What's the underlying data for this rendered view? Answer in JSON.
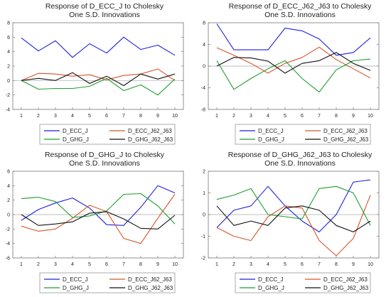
{
  "chart_data": [
    {
      "type": "line",
      "title": "Response of D_ECC_J to Cholesky",
      "subtitle": "One S.D. Innovations",
      "x": [
        1,
        2,
        3,
        4,
        5,
        6,
        7,
        8,
        9,
        10
      ],
      "ylim": [
        -4,
        8
      ],
      "yticks": [
        -4,
        -2,
        0,
        2,
        4,
        6,
        8
      ],
      "zero_line": true,
      "legend_placement": "bottom",
      "series": [
        {
          "name": "D_ECC_J",
          "color": "#1f1fe0",
          "values": [
            5.9,
            4.1,
            5.5,
            3.2,
            5.1,
            3.8,
            6.0,
            4.3,
            4.9,
            3.5
          ]
        },
        {
          "name": "D_ECC_J62_J63",
          "color": "#d9532b",
          "values": [
            0.0,
            1.0,
            0.9,
            0.6,
            0.8,
            0.1,
            0.7,
            0.9,
            1.6,
            0.0
          ]
        },
        {
          "name": "D_GHG_J",
          "color": "#1e9e2c",
          "values": [
            0.0,
            -1.2,
            -1.1,
            -1.1,
            -0.8,
            0.3,
            -1.4,
            -0.6,
            -2.0,
            0.2
          ]
        },
        {
          "name": "D_GHG_J62_J63",
          "color": "#111111",
          "values": [
            0.0,
            0.3,
            0.0,
            1.1,
            -0.4,
            0.6,
            -0.7,
            0.9,
            0.2,
            0.9
          ]
        }
      ]
    },
    {
      "type": "line",
      "title": "Response of D_ECC_J62_J63 to Cholesky",
      "subtitle": "One S.D. Innovations",
      "x": [
        1,
        2,
        3,
        4,
        5,
        6,
        7,
        8,
        9,
        10
      ],
      "ylim": [
        -8,
        8
      ],
      "yticks": [
        -8,
        -4,
        0,
        4,
        8
      ],
      "zero_line": true,
      "legend_placement": "bottom",
      "series": [
        {
          "name": "D_ECC_J",
          "color": "#1f1fe0",
          "values": [
            7.8,
            3.0,
            3.0,
            3.0,
            7.0,
            6.5,
            5.0,
            2.0,
            2.5,
            5.2
          ]
        },
        {
          "name": "D_ECC_J62_J63",
          "color": "#d9532b",
          "values": [
            3.4,
            2.0,
            0.5,
            -1.3,
            0.5,
            1.6,
            3.5,
            1.2,
            -0.5,
            -2.2
          ]
        },
        {
          "name": "D_GHG_J",
          "color": "#1e9e2c",
          "values": [
            1.0,
            -4.3,
            -2.3,
            -0.5,
            1.0,
            -2.3,
            -4.8,
            -0.7,
            1.0,
            1.3
          ]
        },
        {
          "name": "D_GHG_J62_J63",
          "color": "#111111",
          "values": [
            0.0,
            1.6,
            1.5,
            0.9,
            -1.3,
            0.5,
            1.0,
            2.5,
            0.5,
            -0.8
          ]
        }
      ]
    },
    {
      "type": "line",
      "title": "Response of D_GHG_J to Cholesky",
      "subtitle": "One S.D. Innovations",
      "x": [
        1,
        2,
        3,
        4,
        5,
        6,
        7,
        8,
        9,
        10
      ],
      "ylim": [
        -6,
        6
      ],
      "yticks": [
        -6,
        -4,
        -2,
        0,
        2,
        4,
        6
      ],
      "zero_line": true,
      "legend_placement": "bottom",
      "series": [
        {
          "name": "D_ECC_J",
          "color": "#1f1fe0",
          "values": [
            -0.8,
            0.7,
            1.6,
            2.3,
            0.9,
            -1.4,
            -1.5,
            1.0,
            4.0,
            3.0
          ]
        },
        {
          "name": "D_ECC_J62_J63",
          "color": "#d9532b",
          "values": [
            -1.6,
            -2.3,
            -2.0,
            -0.5,
            1.3,
            0.4,
            -3.3,
            -4.0,
            -0.5,
            2.8
          ]
        },
        {
          "name": "D_GHG_J",
          "color": "#1e9e2c",
          "values": [
            2.2,
            2.4,
            1.8,
            -0.4,
            -0.2,
            0.5,
            2.8,
            2.9,
            1.2,
            -1.3
          ]
        },
        {
          "name": "D_GHG_J62_J63",
          "color": "#111111",
          "values": [
            0.0,
            -1.5,
            -1.3,
            -1.0,
            0.2,
            0.4,
            -0.6,
            -1.9,
            -2.0,
            -0.1
          ]
        }
      ]
    },
    {
      "type": "line",
      "title": "Response of D_GHG_J62_J63 to Cholesky",
      "subtitle": "One S.D. Innovations",
      "x": [
        1,
        2,
        3,
        4,
        5,
        6,
        7,
        8,
        9,
        10
      ],
      "ylim": [
        -2,
        2
      ],
      "yticks": [
        -2,
        -1,
        0,
        1,
        2
      ],
      "zero_line": true,
      "legend_placement": "bottom",
      "series": [
        {
          "name": "D_ECC_J",
          "color": "#1f1fe0",
          "values": [
            -0.6,
            0.2,
            0.4,
            1.3,
            0.4,
            -0.3,
            -0.8,
            0.0,
            1.5,
            1.6
          ]
        },
        {
          "name": "D_ECC_J62_J63",
          "color": "#d9532b",
          "values": [
            -0.6,
            -1.0,
            -1.2,
            -0.1,
            0.4,
            0.3,
            -1.2,
            -1.9,
            -1.1,
            0.9
          ]
        },
        {
          "name": "D_GHG_J",
          "color": "#1e9e2c",
          "values": [
            0.7,
            0.9,
            1.2,
            0.0,
            -0.1,
            -0.2,
            1.2,
            1.3,
            1.0,
            -0.5
          ]
        },
        {
          "name": "D_GHG_J62_J63",
          "color": "#111111",
          "values": [
            0.4,
            -0.5,
            -0.3,
            -0.5,
            0.3,
            0.4,
            0.2,
            -0.5,
            -0.8,
            -0.3
          ]
        }
      ]
    }
  ]
}
